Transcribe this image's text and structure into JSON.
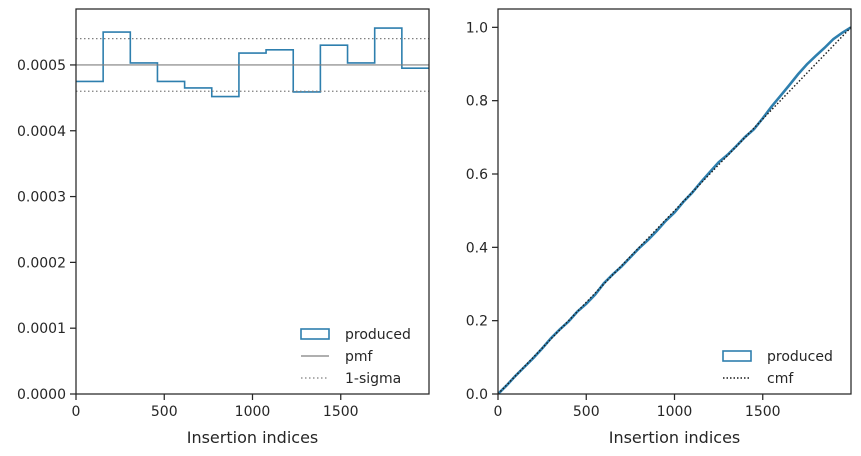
{
  "colors": {
    "produced": "#2e7fae",
    "pmf": "#7f7f7f",
    "sigma": "#7f7f7f",
    "cmf": "#1a1a1a",
    "axes": "#262626"
  },
  "chart_data": [
    {
      "type": "step-histogram",
      "xlabel": "Insertion indices",
      "ylabel": "",
      "xlim": [
        0,
        2000
      ],
      "ylim": [
        0,
        0.000585
      ],
      "xticks": [
        0,
        500,
        1000,
        1500
      ],
      "xtick_labels": [
        "0",
        "500",
        "1000",
        "1500"
      ],
      "yticks": [
        0,
        0.0001,
        0.0002,
        0.0003,
        0.0004,
        0.0005
      ],
      "ytick_labels": [
        "0.0000",
        "0.0001",
        "0.0002",
        "0.0003",
        "0.0004",
        "0.0005"
      ],
      "bin_edges": [
        0,
        153.8,
        307.7,
        461.5,
        615.4,
        769.2,
        923.1,
        1076.9,
        1230.8,
        1384.6,
        1538.5,
        1692.3,
        1846.2,
        2000
      ],
      "series": [
        {
          "name": "produced",
          "style": "step",
          "values": [
            0.000475,
            0.00055,
            0.000503,
            0.000475,
            0.000465,
            0.000452,
            0.000518,
            0.000523,
            0.000459,
            0.00053,
            0.000503,
            0.000556,
            0.000495
          ]
        },
        {
          "name": "pmf",
          "style": "hline",
          "y": 0.0005
        },
        {
          "name": "1-sigma",
          "style": "hline-dotted",
          "y": [
            0.00046,
            0.00054
          ]
        }
      ],
      "legend": [
        "produced",
        "pmf",
        "1-sigma"
      ],
      "legend_position": "lower-right",
      "grid": false
    },
    {
      "type": "line",
      "xlabel": "Insertion indices",
      "ylabel": "",
      "xlim": [
        0,
        2000
      ],
      "ylim": [
        0,
        1.05
      ],
      "xticks": [
        0,
        500,
        1000,
        1500
      ],
      "xtick_labels": [
        "0",
        "500",
        "1000",
        "1500"
      ],
      "yticks": [
        0,
        0.2,
        0.4,
        0.6,
        0.8,
        1.0
      ],
      "ytick_labels": [
        "0.0",
        "0.2",
        "0.4",
        "0.6",
        "0.8",
        "1.0"
      ],
      "series": [
        {
          "name": "produced",
          "style": "solid",
          "x": [
            0,
            50,
            100,
            150,
            200,
            250,
            300,
            350,
            400,
            450,
            500,
            550,
            600,
            650,
            700,
            750,
            800,
            850,
            900,
            950,
            1000,
            1050,
            1100,
            1150,
            1200,
            1250,
            1300,
            1350,
            1400,
            1450,
            1500,
            1550,
            1600,
            1650,
            1700,
            1750,
            1800,
            1850,
            1900,
            1950,
            2000
          ],
          "y": [
            0,
            0.024,
            0.05,
            0.074,
            0.098,
            0.124,
            0.152,
            0.176,
            0.198,
            0.225,
            0.246,
            0.271,
            0.302,
            0.326,
            0.348,
            0.373,
            0.398,
            0.42,
            0.445,
            0.472,
            0.495,
            0.524,
            0.549,
            0.578,
            0.605,
            0.632,
            0.652,
            0.676,
            0.701,
            0.722,
            0.752,
            0.784,
            0.813,
            0.842,
            0.872,
            0.899,
            0.922,
            0.944,
            0.968,
            0.985,
            1.0
          ]
        },
        {
          "name": "cmf",
          "style": "dotted",
          "x": [
            0,
            2000
          ],
          "y": [
            0,
            1.0
          ]
        }
      ],
      "legend": [
        "produced",
        "cmf"
      ],
      "legend_position": "lower-right",
      "grid": false
    }
  ]
}
